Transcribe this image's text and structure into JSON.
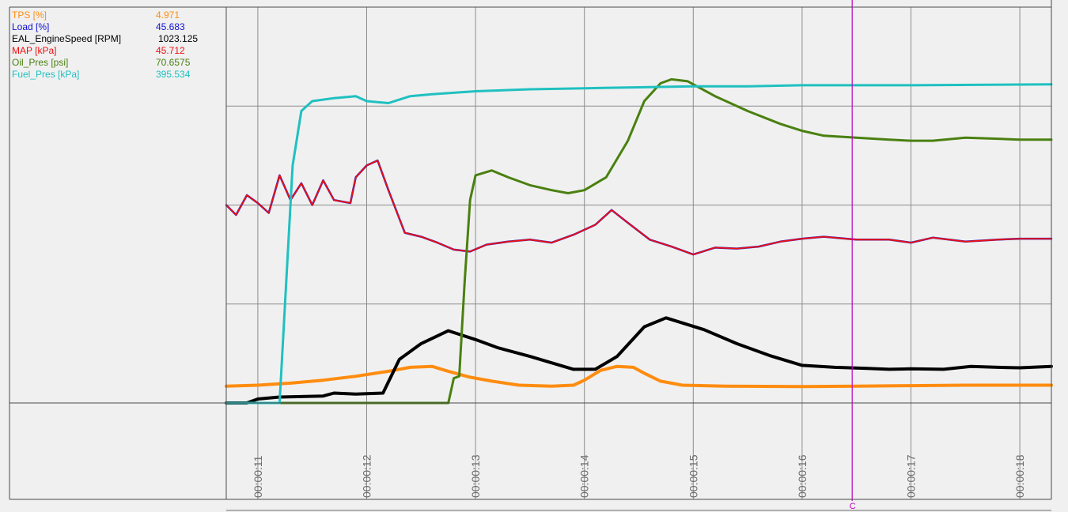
{
  "colors": {
    "background": "#f0f0f0",
    "grid": "#8c8c8c",
    "border": "#4a4a4a",
    "cursor": "#c000c0"
  },
  "cursor": {
    "label": "C",
    "time": 16.46
  },
  "chart_data": {
    "type": "line",
    "title": "",
    "xlabel": "",
    "ylabel": "",
    "x_range": [
      10.71,
      18.29
    ],
    "x_ticks": [
      11,
      12,
      13,
      14,
      15,
      16,
      17,
      18
    ],
    "x_tick_labels": [
      "00:00:11",
      "00:00:12",
      "00:00:13",
      "00:00:14",
      "00:00:15",
      "00:00:16",
      "00:00:17",
      "00:00:18"
    ],
    "grid": true,
    "legend_position": "top-left",
    "series": [
      {
        "name": "TPS [%]",
        "value": "4.971",
        "color": "#ff8c10",
        "width": 4,
        "points": [
          [
            10.71,
            0.17
          ],
          [
            11.0,
            0.18
          ],
          [
            11.3,
            0.2
          ],
          [
            11.6,
            0.23
          ],
          [
            11.9,
            0.27
          ],
          [
            12.2,
            0.32
          ],
          [
            12.4,
            0.36
          ],
          [
            12.6,
            0.37
          ],
          [
            12.75,
            0.32
          ],
          [
            12.95,
            0.26
          ],
          [
            13.15,
            0.22
          ],
          [
            13.4,
            0.18
          ],
          [
            13.7,
            0.17
          ],
          [
            13.9,
            0.18
          ],
          [
            14.0,
            0.23
          ],
          [
            14.15,
            0.33
          ],
          [
            14.3,
            0.37
          ],
          [
            14.45,
            0.36
          ],
          [
            14.55,
            0.3
          ],
          [
            14.7,
            0.22
          ],
          [
            14.9,
            0.18
          ],
          [
            15.3,
            0.17
          ],
          [
            16.0,
            0.165
          ],
          [
            16.5,
            0.17
          ],
          [
            17.0,
            0.175
          ],
          [
            17.5,
            0.18
          ],
          [
            18.29,
            0.18
          ]
        ]
      },
      {
        "name": "Load [%]",
        "value": "45.683",
        "color": "#1010d0",
        "width": 2.5,
        "points": [
          [
            10.71,
            2.0
          ],
          [
            10.8,
            1.9
          ],
          [
            10.9,
            2.1
          ],
          [
            11.0,
            2.02
          ],
          [
            11.1,
            1.92
          ],
          [
            11.2,
            2.3
          ],
          [
            11.3,
            2.05
          ],
          [
            11.4,
            2.22
          ],
          [
            11.5,
            2.0
          ],
          [
            11.6,
            2.25
          ],
          [
            11.7,
            2.05
          ],
          [
            11.85,
            2.02
          ],
          [
            11.9,
            2.28
          ],
          [
            12.0,
            2.4
          ],
          [
            12.1,
            2.45
          ],
          [
            12.2,
            2.15
          ],
          [
            12.35,
            1.72
          ],
          [
            12.5,
            1.68
          ],
          [
            12.65,
            1.62
          ],
          [
            12.8,
            1.55
          ],
          [
            12.95,
            1.53
          ],
          [
            13.1,
            1.6
          ],
          [
            13.3,
            1.63
          ],
          [
            13.5,
            1.65
          ],
          [
            13.7,
            1.62
          ],
          [
            13.9,
            1.7
          ],
          [
            14.1,
            1.8
          ],
          [
            14.25,
            1.95
          ],
          [
            14.4,
            1.82
          ],
          [
            14.6,
            1.65
          ],
          [
            14.8,
            1.58
          ],
          [
            15.0,
            1.5
          ],
          [
            15.2,
            1.57
          ],
          [
            15.4,
            1.56
          ],
          [
            15.6,
            1.58
          ],
          [
            15.8,
            1.63
          ],
          [
            16.0,
            1.66
          ],
          [
            16.2,
            1.68
          ],
          [
            16.5,
            1.65
          ],
          [
            16.8,
            1.65
          ],
          [
            17.0,
            1.62
          ],
          [
            17.2,
            1.67
          ],
          [
            17.5,
            1.63
          ],
          [
            17.8,
            1.65
          ],
          [
            18.0,
            1.66
          ],
          [
            18.29,
            1.66
          ]
        ]
      },
      {
        "name": "EAL_EngineSpeed [RPM]",
        "value": "1023.125",
        "color": "#000000",
        "width": 4,
        "points": [
          [
            10.71,
            0.0
          ],
          [
            10.9,
            0.0
          ],
          [
            11.0,
            0.04
          ],
          [
            11.2,
            0.06
          ],
          [
            11.6,
            0.07
          ],
          [
            11.7,
            0.1
          ],
          [
            11.9,
            0.09
          ],
          [
            12.15,
            0.1
          ],
          [
            12.3,
            0.44
          ],
          [
            12.5,
            0.6
          ],
          [
            12.75,
            0.73
          ],
          [
            13.0,
            0.64
          ],
          [
            13.2,
            0.56
          ],
          [
            13.5,
            0.47
          ],
          [
            13.9,
            0.34
          ],
          [
            14.1,
            0.34
          ],
          [
            14.3,
            0.47
          ],
          [
            14.55,
            0.77
          ],
          [
            14.75,
            0.86
          ],
          [
            15.1,
            0.74
          ],
          [
            15.4,
            0.6
          ],
          [
            15.7,
            0.48
          ],
          [
            16.0,
            0.38
          ],
          [
            16.3,
            0.36
          ],
          [
            16.6,
            0.35
          ],
          [
            16.8,
            0.34
          ],
          [
            17.0,
            0.345
          ],
          [
            17.3,
            0.34
          ],
          [
            17.55,
            0.37
          ],
          [
            17.8,
            0.36
          ],
          [
            18.0,
            0.355
          ],
          [
            18.29,
            0.37
          ]
        ]
      },
      {
        "name": "MAP [kPa]",
        "value": "45.712",
        "color": "#ee1010",
        "width": 1.8,
        "points": [
          [
            10.71,
            2.0
          ],
          [
            10.8,
            1.9
          ],
          [
            10.9,
            2.1
          ],
          [
            11.0,
            2.02
          ],
          [
            11.1,
            1.92
          ],
          [
            11.2,
            2.3
          ],
          [
            11.3,
            2.05
          ],
          [
            11.4,
            2.22
          ],
          [
            11.5,
            2.0
          ],
          [
            11.6,
            2.25
          ],
          [
            11.7,
            2.05
          ],
          [
            11.85,
            2.02
          ],
          [
            11.9,
            2.28
          ],
          [
            12.0,
            2.4
          ],
          [
            12.1,
            2.45
          ],
          [
            12.2,
            2.15
          ],
          [
            12.35,
            1.72
          ],
          [
            12.5,
            1.68
          ],
          [
            12.65,
            1.62
          ],
          [
            12.8,
            1.55
          ],
          [
            12.95,
            1.53
          ],
          [
            13.1,
            1.6
          ],
          [
            13.3,
            1.63
          ],
          [
            13.5,
            1.65
          ],
          [
            13.7,
            1.62
          ],
          [
            13.9,
            1.7
          ],
          [
            14.1,
            1.8
          ],
          [
            14.25,
            1.95
          ],
          [
            14.4,
            1.82
          ],
          [
            14.6,
            1.65
          ],
          [
            14.8,
            1.58
          ],
          [
            15.0,
            1.5
          ],
          [
            15.2,
            1.57
          ],
          [
            15.4,
            1.56
          ],
          [
            15.6,
            1.58
          ],
          [
            15.8,
            1.63
          ],
          [
            16.0,
            1.66
          ],
          [
            16.2,
            1.68
          ],
          [
            16.5,
            1.65
          ],
          [
            16.8,
            1.65
          ],
          [
            17.0,
            1.62
          ],
          [
            17.2,
            1.67
          ],
          [
            17.5,
            1.63
          ],
          [
            17.8,
            1.65
          ],
          [
            18.0,
            1.66
          ],
          [
            18.29,
            1.66
          ]
        ]
      },
      {
        "name": "Oil_Pres [psi]",
        "value": "70.6575",
        "color": "#4a8010",
        "width": 3,
        "points": [
          [
            10.71,
            0.0
          ],
          [
            12.75,
            0.0
          ],
          [
            12.8,
            0.25
          ],
          [
            12.85,
            0.27
          ],
          [
            12.9,
            1.22
          ],
          [
            12.95,
            2.05
          ],
          [
            13.0,
            2.3
          ],
          [
            13.15,
            2.35
          ],
          [
            13.3,
            2.28
          ],
          [
            13.5,
            2.2
          ],
          [
            13.7,
            2.15
          ],
          [
            13.85,
            2.12
          ],
          [
            14.0,
            2.15
          ],
          [
            14.2,
            2.28
          ],
          [
            14.4,
            2.65
          ],
          [
            14.55,
            3.05
          ],
          [
            14.7,
            3.23
          ],
          [
            14.8,
            3.27
          ],
          [
            14.95,
            3.25
          ],
          [
            15.2,
            3.1
          ],
          [
            15.5,
            2.95
          ],
          [
            15.8,
            2.82
          ],
          [
            16.0,
            2.75
          ],
          [
            16.2,
            2.7
          ],
          [
            16.5,
            2.68
          ],
          [
            16.8,
            2.66
          ],
          [
            17.0,
            2.65
          ],
          [
            17.2,
            2.65
          ],
          [
            17.5,
            2.68
          ],
          [
            17.8,
            2.67
          ],
          [
            18.0,
            2.66
          ],
          [
            18.29,
            2.66
          ]
        ]
      },
      {
        "name": "Fuel_Pres [kPa]",
        "value": "395.534",
        "color": "#20c0c0",
        "width": 3,
        "points": [
          [
            10.71,
            0.0
          ],
          [
            11.2,
            0.0
          ],
          [
            11.32,
            2.4
          ],
          [
            11.4,
            2.95
          ],
          [
            11.5,
            3.05
          ],
          [
            11.7,
            3.08
          ],
          [
            11.9,
            3.1
          ],
          [
            12.0,
            3.05
          ],
          [
            12.2,
            3.03
          ],
          [
            12.4,
            3.1
          ],
          [
            12.6,
            3.12
          ],
          [
            13.0,
            3.15
          ],
          [
            13.5,
            3.17
          ],
          [
            14.0,
            3.18
          ],
          [
            14.5,
            3.19
          ],
          [
            15.0,
            3.2
          ],
          [
            15.5,
            3.2
          ],
          [
            16.0,
            3.21
          ],
          [
            17.0,
            3.21
          ],
          [
            18.29,
            3.22
          ]
        ]
      }
    ]
  }
}
